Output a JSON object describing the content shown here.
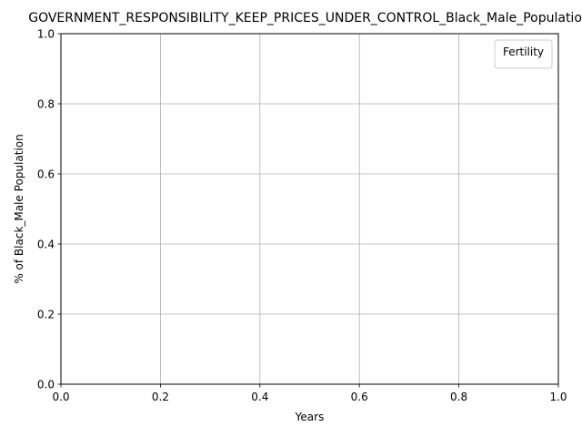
{
  "chart_data": {
    "type": "line",
    "title": "GOVERNMENT_RESPONSIBILITY_KEEP_PRICES_UNDER_CONTROL_Black_Male_Population",
    "xlabel": "Years",
    "ylabel": "% of Black_Male Population",
    "xlim": [
      0.0,
      1.0
    ],
    "ylim": [
      0.0,
      1.0
    ],
    "x_ticks": [
      "0.0",
      "0.2",
      "0.4",
      "0.6",
      "0.8",
      "1.0"
    ],
    "y_ticks": [
      "0.0",
      "0.2",
      "0.4",
      "0.6",
      "0.8",
      "1.0"
    ],
    "grid": true,
    "legend": {
      "title": "Fertility",
      "placement": "top-right",
      "entries": []
    },
    "series": []
  },
  "colors": {
    "grid": "#b0b0b0",
    "axis": "#000000",
    "legend_border": "#cccccc",
    "background": "#ffffff"
  }
}
